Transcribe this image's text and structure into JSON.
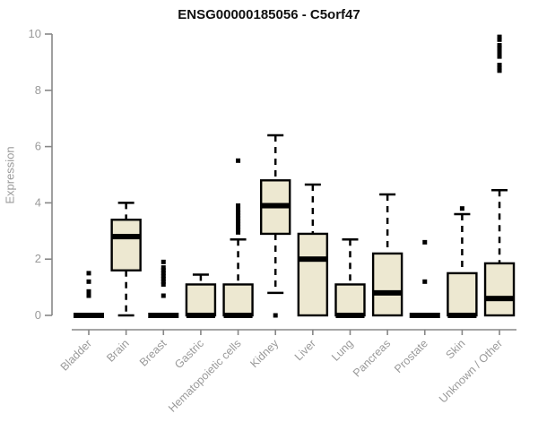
{
  "title": "ENSG00000185056 - C5orf47",
  "colors": {
    "box_fill": "#EDE8D1",
    "box_border": "#000000",
    "median": "#000000",
    "whisker": "#000000",
    "outlier": "#000000",
    "axis": "#878787",
    "tick_label": "#9a9a9a",
    "title_text": "#111111"
  },
  "chart_data": {
    "type": "box",
    "title": "ENSG00000185056 - C5orf47",
    "xlabel": "",
    "ylabel": "Expression",
    "ylim": [
      0,
      10
    ],
    "yticks": [
      0,
      2,
      4,
      6,
      8,
      10
    ],
    "grid": false,
    "legend": "none",
    "categories": [
      "Bladder",
      "Brain",
      "Breast",
      "Gastric",
      "Hematopoietic cells",
      "Kidney",
      "Liver",
      "Lung",
      "Pancreas",
      "Prostate",
      "Skin",
      "Unknown / Other"
    ],
    "series": [
      {
        "name": "Bladder",
        "q1": 0,
        "median": 0,
        "q3": 0,
        "whisker_low": 0,
        "whisker_high": 0,
        "outliers": [
          0.7,
          0.85,
          1.2,
          1.5
        ]
      },
      {
        "name": "Brain",
        "q1": 1.6,
        "median": 2.8,
        "q3": 3.4,
        "whisker_low": 0,
        "whisker_high": 4.0,
        "outliers": []
      },
      {
        "name": "Breast",
        "q1": 0,
        "median": 0,
        "q3": 0,
        "whisker_low": 0,
        "whisker_high": 0,
        "outliers": [
          0.7,
          1.1,
          1.2,
          1.3,
          1.4,
          1.5,
          1.6,
          1.7,
          1.9
        ]
      },
      {
        "name": "Gastric",
        "q1": 0,
        "median": 0,
        "q3": 1.1,
        "whisker_low": 0,
        "whisker_high": 1.45,
        "outliers": []
      },
      {
        "name": "Hematopoietic cells",
        "q1": 0,
        "median": 0,
        "q3": 1.1,
        "whisker_low": 0,
        "whisker_high": 2.7,
        "outliers": [
          2.95,
          3.05,
          3.15,
          3.25,
          3.35,
          3.45,
          3.55,
          3.65,
          3.75,
          3.9,
          5.5
        ]
      },
      {
        "name": "Kidney",
        "q1": 2.9,
        "median": 3.9,
        "q3": 4.8,
        "whisker_low": 0.8,
        "whisker_high": 6.4,
        "outliers": [
          0
        ]
      },
      {
        "name": "Liver",
        "q1": 0,
        "median": 2.0,
        "q3": 2.9,
        "whisker_low": 0,
        "whisker_high": 4.65,
        "outliers": []
      },
      {
        "name": "Lung",
        "q1": 0,
        "median": 0,
        "q3": 1.1,
        "whisker_low": 0,
        "whisker_high": 2.7,
        "outliers": []
      },
      {
        "name": "Pancreas",
        "q1": 0,
        "median": 0.8,
        "q3": 2.2,
        "whisker_low": 0,
        "whisker_high": 4.3,
        "outliers": []
      },
      {
        "name": "Prostate",
        "q1": 0,
        "median": 0,
        "q3": 0,
        "whisker_low": 0,
        "whisker_high": 0,
        "outliers": [
          1.2,
          2.6
        ]
      },
      {
        "name": "Skin",
        "q1": 0,
        "median": 0,
        "q3": 1.5,
        "whisker_low": 0,
        "whisker_high": 3.6,
        "outliers": [
          3.8
        ]
      },
      {
        "name": "Unknown / Other",
        "q1": 0,
        "median": 0.6,
        "q3": 1.85,
        "whisker_low": 0,
        "whisker_high": 4.45,
        "outliers": [
          8.7,
          8.8,
          8.9,
          9.2,
          9.35,
          9.5,
          9.6,
          9.8,
          9.9
        ]
      }
    ]
  }
}
